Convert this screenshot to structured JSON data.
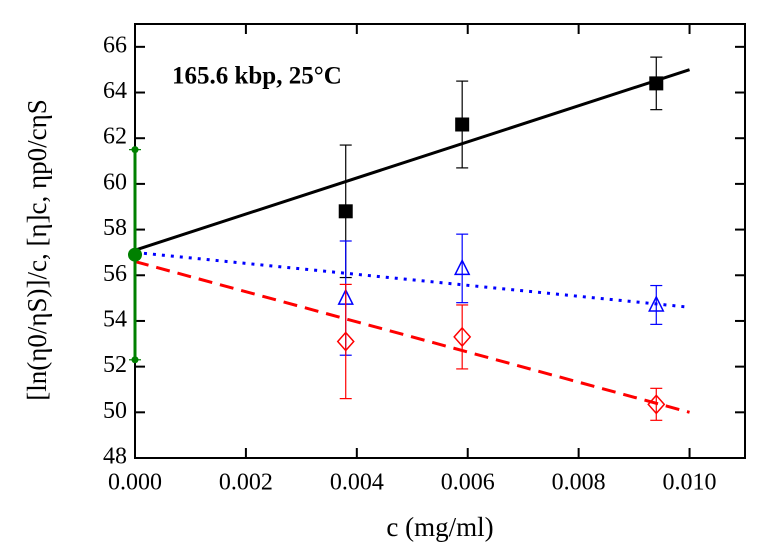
{
  "chart_data": {
    "type": "scatter",
    "annotation": "165.6 kbp, 25°C",
    "annotation_color": "#800080",
    "x_label": "c (mg/ml)",
    "y_label": "[ln(η0/ηS)]/c,  [η]c,  ηp0/cηS",
    "xlim": [
      0,
      0.011
    ],
    "ylim": [
      48,
      67
    ],
    "xticks": [
      {
        "value": 0,
        "label": "0.000"
      },
      {
        "value": 0.002,
        "label": "0.002"
      },
      {
        "value": 0.004,
        "label": "0.004"
      },
      {
        "value": 0.006,
        "label": "0.006"
      },
      {
        "value": 0.008,
        "label": "0.008"
      },
      {
        "value": 0.01,
        "label": "0.010"
      }
    ],
    "yticks": [
      48,
      50,
      52,
      54,
      56,
      58,
      60,
      62,
      64,
      66
    ],
    "series": [
      {
        "marker": "square",
        "color": "#000000",
        "x": [
          0.0038,
          0.0059,
          0.0094
        ],
        "values": [
          58.8,
          62.6,
          64.4
        ],
        "errors": [
          2.9,
          1.9,
          1.15
        ]
      },
      {
        "marker": "triangle",
        "color": "#0000ff",
        "x": [
          0.0038,
          0.0059,
          0.0094
        ],
        "values": [
          55.0,
          56.3,
          54.7
        ],
        "errors": [
          2.5,
          1.5,
          0.85
        ]
      },
      {
        "marker": "diamond",
        "color": "#ff0000",
        "x": [
          0.0038,
          0.0059,
          0.0094
        ],
        "values": [
          53.1,
          53.3,
          50.35
        ],
        "errors": [
          2.5,
          1.4,
          0.7
        ]
      },
      {
        "marker": "circle",
        "color": "#008000",
        "x": [
          0
        ],
        "values": [
          56.9
        ],
        "errors": [
          4.6
        ]
      }
    ],
    "fits": [
      {
        "color": "#000000",
        "dash": "none",
        "x": [
          0,
          0.01
        ],
        "values": [
          57.1,
          65.0
        ]
      },
      {
        "color": "#0000ff",
        "dash": "3 6",
        "x": [
          0,
          0.01
        ],
        "values": [
          57.0,
          54.6
        ]
      },
      {
        "color": "#ff0000",
        "dash": "14 8",
        "x": [
          0,
          0.01
        ],
        "values": [
          56.6,
          50.0
        ]
      }
    ]
  }
}
